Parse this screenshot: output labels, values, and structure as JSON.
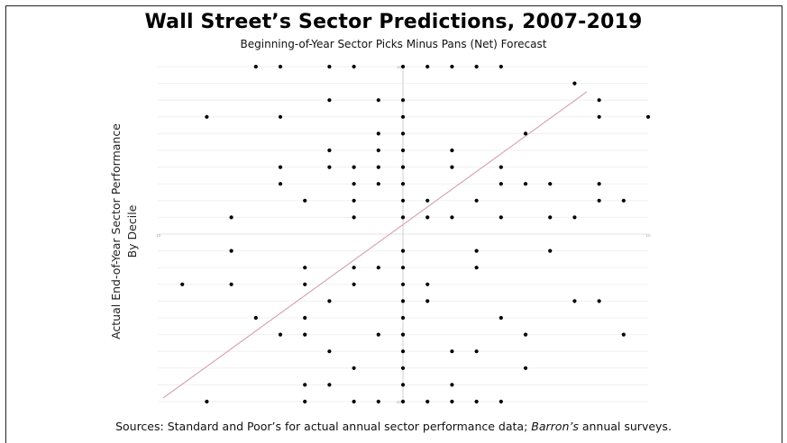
{
  "chart_data": {
    "type": "scatter",
    "title": "Wall Street’s Sector Predictions, 2007-2019",
    "subtitle": "Beginning-of-Year Sector Picks Minus Pans (Net) Forecast",
    "ylabel_line1": "Actual End-of-Year Sector Performance",
    "ylabel_line2": "By Decile",
    "source_prefix": "Sources: Standard and Poor’s for actual annual sector performance data;  ",
    "source_italic": "Barron’s",
    "source_suffix": " annual surveys.",
    "xlim": [
      -10,
      10
    ],
    "ylim": [
      -10,
      10
    ],
    "x_tick_labels": [
      "-10",
      "10"
    ],
    "y_tick_labels": [
      "10",
      "-10"
    ],
    "grid": true,
    "trendline": {
      "from": [
        -10,
        -10
      ],
      "to": [
        7.5,
        8.5
      ],
      "color": "#d9a6b3"
    },
    "point_color": "#000000",
    "points": [
      [
        -6,
        10
      ],
      [
        -5,
        10
      ],
      [
        -3,
        10
      ],
      [
        -2,
        10
      ],
      [
        0,
        10
      ],
      [
        1,
        10
      ],
      [
        2,
        10
      ],
      [
        3,
        10
      ],
      [
        4,
        10
      ],
      [
        7,
        9
      ],
      [
        -3,
        8
      ],
      [
        -1,
        8
      ],
      [
        0,
        8
      ],
      [
        8,
        8
      ],
      [
        -8,
        7
      ],
      [
        -5,
        7
      ],
      [
        0,
        7
      ],
      [
        8,
        7
      ],
      [
        10,
        7
      ],
      [
        -1,
        6
      ],
      [
        0,
        6
      ],
      [
        5,
        6
      ],
      [
        -3,
        5
      ],
      [
        -1,
        5
      ],
      [
        0,
        5
      ],
      [
        2,
        5
      ],
      [
        -5,
        4
      ],
      [
        -3,
        4
      ],
      [
        -2,
        4
      ],
      [
        -1,
        4
      ],
      [
        0,
        4
      ],
      [
        2,
        4
      ],
      [
        4,
        4
      ],
      [
        -5,
        3
      ],
      [
        -2,
        3
      ],
      [
        -1,
        3
      ],
      [
        0,
        3
      ],
      [
        4,
        3
      ],
      [
        5,
        3
      ],
      [
        6,
        3
      ],
      [
        8,
        3
      ],
      [
        -4,
        2
      ],
      [
        -2,
        2
      ],
      [
        0,
        2
      ],
      [
        1,
        2
      ],
      [
        3,
        2
      ],
      [
        8,
        2
      ],
      [
        9,
        2
      ],
      [
        -7,
        1
      ],
      [
        -2,
        1
      ],
      [
        0,
        1
      ],
      [
        1,
        1
      ],
      [
        2,
        1
      ],
      [
        4,
        1
      ],
      [
        6,
        1
      ],
      [
        7,
        1
      ],
      [
        -7,
        -1
      ],
      [
        0,
        -1
      ],
      [
        3,
        -1
      ],
      [
        6,
        -1
      ],
      [
        -4,
        -2
      ],
      [
        -2,
        -2
      ],
      [
        -1,
        -2
      ],
      [
        0,
        -2
      ],
      [
        3,
        -2
      ],
      [
        -9,
        -3
      ],
      [
        -7,
        -3
      ],
      [
        -4,
        -3
      ],
      [
        -2,
        -3
      ],
      [
        0,
        -3
      ],
      [
        1,
        -3
      ],
      [
        -3,
        -4
      ],
      [
        0,
        -4
      ],
      [
        1,
        -4
      ],
      [
        7,
        -4
      ],
      [
        8,
        -4
      ],
      [
        -6,
        -5
      ],
      [
        -4,
        -5
      ],
      [
        0,
        -5
      ],
      [
        4,
        -5
      ],
      [
        -5,
        -6
      ],
      [
        -4,
        -6
      ],
      [
        -1,
        -6
      ],
      [
        0,
        -6
      ],
      [
        5,
        -6
      ],
      [
        9,
        -6
      ],
      [
        -3,
        -7
      ],
      [
        0,
        -7
      ],
      [
        2,
        -7
      ],
      [
        3,
        -7
      ],
      [
        -2,
        -8
      ],
      [
        0,
        -8
      ],
      [
        5,
        -8
      ],
      [
        -4,
        -9
      ],
      [
        -3,
        -9
      ],
      [
        0,
        -9
      ],
      [
        2,
        -9
      ],
      [
        -8,
        -10
      ],
      [
        -4,
        -10
      ],
      [
        -2,
        -10
      ],
      [
        -1,
        -10
      ],
      [
        0,
        -10
      ],
      [
        1,
        -10
      ],
      [
        2,
        -10
      ],
      [
        3,
        -10
      ],
      [
        4,
        -10
      ]
    ]
  }
}
